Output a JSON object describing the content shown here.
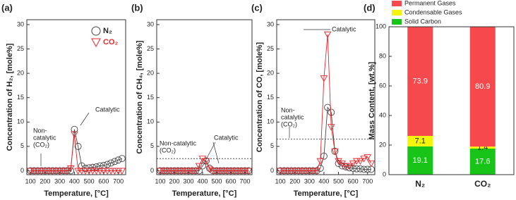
{
  "chart_data": [
    {
      "type": "line",
      "panel_label": "(a)",
      "ylabel": "Concentration of H₂, [mole%]",
      "xlabel": "Temperature, [°C]",
      "xlim": [
        75,
        750
      ],
      "xticks": [
        100,
        200,
        300,
        400,
        500,
        600,
        700
      ],
      "ylim": [
        -0.8,
        31
      ],
      "yticks": [
        0,
        5,
        10,
        15,
        20,
        25,
        30
      ],
      "x": [
        100,
        125,
        150,
        175,
        200,
        225,
        250,
        275,
        300,
        325,
        350,
        375,
        400,
        425,
        450,
        475,
        500,
        525,
        550,
        575,
        600,
        625,
        650,
        675,
        700,
        725
      ],
      "series": [
        {
          "name": "N₂",
          "color": "#444444",
          "marker": "circle",
          "values": [
            0,
            0,
            0,
            0,
            0,
            0,
            0,
            0,
            0,
            0,
            0,
            0,
            8.5,
            5,
            1,
            0.5,
            0.6,
            0.7,
            0.8,
            1,
            1.1,
            1.3,
            1.6,
            1.9,
            2.2,
            2.5
          ]
        },
        {
          "name": "CO₂",
          "color": "#e8262b",
          "marker": "triangle",
          "values": [
            0,
            0,
            0,
            0,
            0,
            0,
            0,
            0,
            0,
            0,
            0,
            0.5,
            7.5,
            0,
            0,
            0,
            0,
            0,
            0,
            0,
            0,
            0,
            0,
            0,
            0,
            0
          ]
        }
      ],
      "legend": "upper right",
      "annotations": [
        {
          "lines": [
            "Catalytic"
          ]
        },
        {
          "lines": [
            "Non-",
            "catalytic",
            "(CO₂)"
          ]
        }
      ]
    },
    {
      "type": "line",
      "panel_label": "(b)",
      "ylabel": "Concentration of CH₄, [mole%]",
      "xlabel": "Temperature, [°C]",
      "xlim": [
        75,
        750
      ],
      "xticks": [
        100,
        200,
        300,
        400,
        500,
        600,
        700
      ],
      "ylim": [
        -0.8,
        31
      ],
      "yticks": [
        0,
        5,
        10,
        15,
        20,
        25,
        30
      ],
      "x": [
        100,
        125,
        150,
        175,
        200,
        225,
        250,
        275,
        300,
        325,
        350,
        375,
        400,
        425,
        450,
        475,
        500,
        525,
        550,
        575,
        600,
        625,
        650,
        675,
        700,
        725
      ],
      "series": [
        {
          "name": "N₂",
          "color": "#444444",
          "marker": "circle",
          "values": [
            0,
            0,
            0,
            0,
            0,
            0,
            0,
            0,
            0,
            0,
            0,
            0,
            1,
            2,
            0.5,
            0,
            0,
            0,
            0,
            0,
            0,
            0,
            0,
            0,
            0,
            0
          ]
        },
        {
          "name": "CO₂",
          "color": "#e8262b",
          "marker": "triangle",
          "values": [
            0,
            0,
            0,
            0,
            0,
            0,
            0,
            0,
            0,
            0,
            0,
            1,
            2.5,
            2,
            0.3,
            0,
            0,
            0,
            0,
            0,
            0,
            0,
            0,
            0,
            0,
            0
          ]
        }
      ],
      "reference_line": 2.5,
      "annotations": [
        {
          "lines": [
            "Non-catalytic",
            "(CO₂)"
          ]
        },
        {
          "lines": [
            "Catalytic"
          ]
        }
      ]
    },
    {
      "type": "line",
      "panel_label": "(c)",
      "ylabel": "Concentration of CO, [mole%]",
      "xlabel": "Temperature, [°C]",
      "xlim": [
        75,
        750
      ],
      "xticks": [
        100,
        200,
        300,
        400,
        500,
        600,
        700
      ],
      "ylim": [
        -0.8,
        31
      ],
      "yticks": [
        0,
        5,
        10,
        15,
        20,
        25,
        30
      ],
      "x": [
        100,
        125,
        150,
        175,
        200,
        225,
        250,
        275,
        300,
        325,
        350,
        375,
        400,
        425,
        450,
        475,
        500,
        525,
        550,
        575,
        600,
        625,
        650,
        675,
        700,
        725
      ],
      "series": [
        {
          "name": "N₂",
          "color": "#444444",
          "marker": "circle",
          "values": [
            0,
            0,
            0,
            0,
            0,
            0,
            0,
            0,
            0,
            0,
            0,
            0.5,
            3,
            13,
            12,
            4,
            1.5,
            1,
            0.8,
            0.6,
            0.5,
            0.4,
            0.4,
            0.3,
            0.3,
            0.3
          ]
        },
        {
          "name": "CO₂",
          "color": "#e8262b",
          "marker": "triangle",
          "values": [
            0,
            0,
            0,
            0,
            0,
            0,
            0,
            0,
            0,
            0,
            0,
            2,
            19,
            28,
            9,
            4,
            2,
            1.5,
            1,
            1,
            1.5,
            2,
            2,
            2.5,
            2.8,
            1.5
          ]
        }
      ],
      "reference_line": 6.5,
      "annotations": [
        {
          "lines": [
            "Catalytic"
          ]
        },
        {
          "lines": [
            "Non-",
            "catalytic",
            "(CO₂)"
          ]
        }
      ]
    },
    {
      "type": "stacked_bar",
      "panel_label": "(d)",
      "ylabel": "Mass Content, [wt.%]",
      "categories": [
        "N₂",
        "CO₂"
      ],
      "ylim": [
        0,
        100
      ],
      "yticks": [
        0,
        20,
        40,
        60,
        80,
        100
      ],
      "series": [
        {
          "name": "Solid Carbon",
          "color": "#19c419",
          "label_color": "#ffffff",
          "values": [
            19.1,
            17.6
          ]
        },
        {
          "name": "Condensable Gases",
          "color": "#f5f50a",
          "label_color": "#222222",
          "values": [
            7.1,
            1.4
          ]
        },
        {
          "name": "Permanent Gases",
          "color": "#f5494d",
          "label_color": "#ffffff",
          "values": [
            73.9,
            80.9
          ]
        }
      ],
      "legend": "top"
    }
  ]
}
